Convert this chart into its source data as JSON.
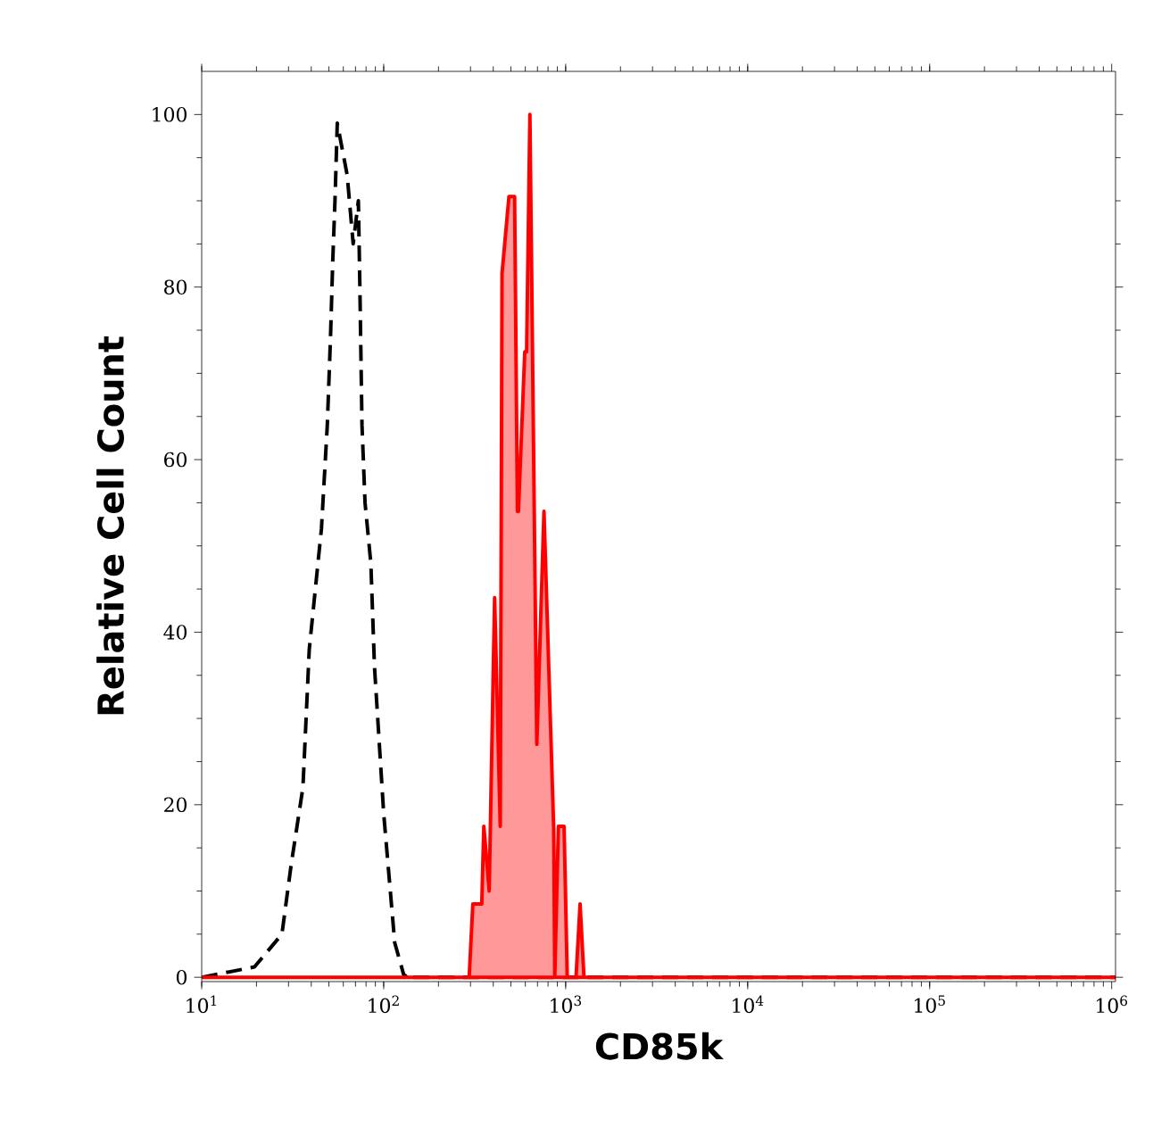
{
  "chart_data": {
    "type": "line",
    "xlabel": "CD85k",
    "ylabel": "Relative Cell Count",
    "log": "x",
    "xlim": [
      10,
      1050000
    ],
    "ylim": [
      -0.5,
      105
    ],
    "xticks": [
      {
        "value": 10,
        "label": "10$^{1}$"
      },
      {
        "value": 100,
        "label": "10$^{2}$"
      },
      {
        "value": 1000,
        "label": "10$^{3}$"
      },
      {
        "value": 10000,
        "label": "10$^{4}$"
      },
      {
        "value": 100000,
        "label": "10$^{5}$"
      },
      {
        "value": 1000000,
        "label": "10$^{6}$"
      }
    ],
    "yticks": [
      0,
      20,
      40,
      60,
      80,
      100
    ],
    "series": [
      {
        "line_style": "dashed",
        "color": "#000000",
        "x": [
          10,
          19.5,
          23,
          27.6,
          31,
          36,
          39,
          45.5,
          49,
          51,
          52.5,
          54,
          55.6,
          63,
          68,
          72.6,
          74,
          76,
          79,
          85,
          89,
          100,
          115,
          130,
          138,
          145,
          1050000
        ],
        "values": [
          0,
          1.2,
          3,
          5,
          13,
          22,
          38,
          52,
          64,
          74,
          83,
          90,
          99,
          93,
          85,
          90,
          80,
          64,
          55,
          48,
          36,
          19,
          4,
          0,
          0.5,
          0,
          0
        ]
      },
      {
        "type": "area",
        "color": "#ff0000",
        "x": [
          10,
          295,
          309,
          346,
          355,
          380,
          407,
          437,
          447,
          488,
          524,
          543,
          550,
          596,
          610,
          636,
          694,
          760,
          860,
          871,
          912,
          980,
          1020,
          1140,
          1200,
          1260,
          1050000
        ],
        "values": [
          0,
          0,
          8.5,
          8.5,
          17.5,
          10,
          44,
          17.5,
          81.6,
          90.5,
          90.5,
          54,
          54,
          72.5,
          72.5,
          100,
          27,
          54,
          17,
          0,
          17.5,
          17.5,
          0,
          0,
          8.5,
          0,
          0
        ]
      }
    ]
  }
}
